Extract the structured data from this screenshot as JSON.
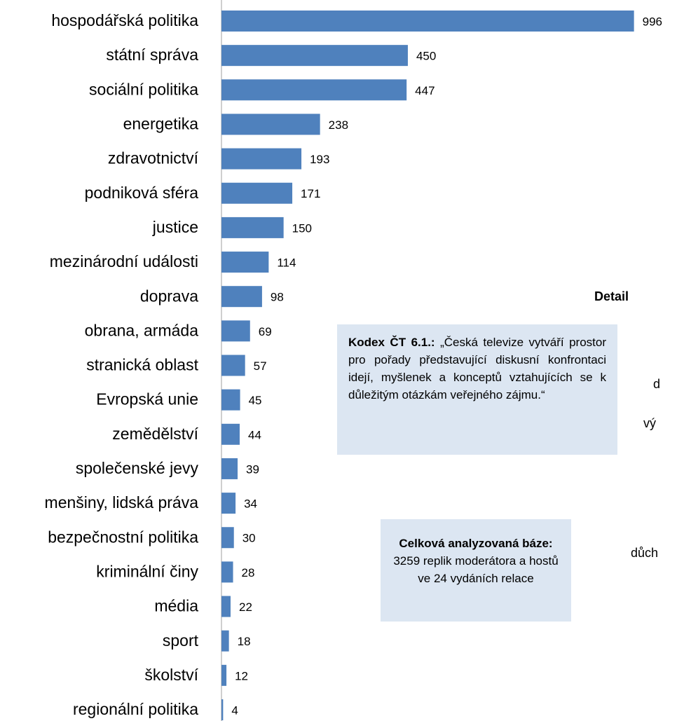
{
  "chart_data": {
    "type": "barh",
    "categories": [
      "hospodářská politika",
      "státní správa",
      "sociální politika",
      "energetika",
      "zdravotnictví",
      "podniková sféra",
      "justice",
      "mezinárodní události",
      "doprava",
      "obrana, armáda",
      "stranická oblast",
      "Evropská unie",
      "zemědělství",
      "společenské jevy",
      "menšiny, lidská práva",
      "bezpečnostní politika",
      "kriminální činy",
      "média",
      "sport",
      "školství",
      "regionální politika"
    ],
    "values": [
      996,
      450,
      447,
      238,
      193,
      171,
      150,
      114,
      98,
      69,
      57,
      45,
      44,
      39,
      34,
      30,
      28,
      22,
      18,
      12,
      4
    ],
    "color": "#4f81bd",
    "xlim": [
      0,
      1000
    ]
  },
  "boxes": [
    {
      "bold": "Kodex ČT 6.1.:",
      "text": " „Česká televize vytváří prostor pro pořady představující diskusní konfrontaci idejí, myšlenek a konceptů vztahujících se k důležitým otázkám veřejného zájmu.“"
    },
    {
      "bold": "Celková analyzovaná báze:",
      "text": " 3259 replik moderátora a hostů ve 24 vydáních relace"
    }
  ],
  "clipped_texts": [
    "Detail",
    "d",
    "vý",
    "důch"
  ]
}
